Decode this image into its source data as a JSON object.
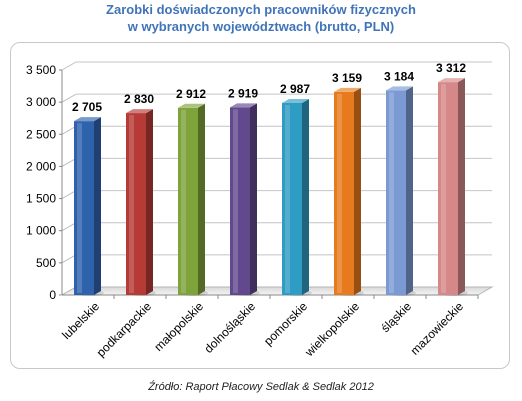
{
  "title_line1": "Zarobki doświadczonych pracowników fizycznych",
  "title_line2": "w wybranych województwach (brutto, PLN)",
  "source": "Źródło: Raport Płacowy Sedlak & Sedlak 2012",
  "chart_data": {
    "type": "bar",
    "title": "Zarobki doświadczonych pracowników fizycznych w wybranych województwach (brutto, PLN)",
    "xlabel": "",
    "ylabel": "",
    "ylim": [
      0,
      3500
    ],
    "yticks": [
      0,
      500,
      1000,
      1500,
      2000,
      2500,
      3000,
      3500
    ],
    "ytick_labels": [
      "0",
      "500",
      "1 000",
      "1 500",
      "2 000",
      "2 500",
      "3 000",
      "3 500"
    ],
    "grid": true,
    "categories": [
      "lubelskie",
      "podkarpackie",
      "małopolskie",
      "dolnośląskie",
      "pomorskie",
      "wielkopolskie",
      "śląskie",
      "mazowieckie"
    ],
    "values": [
      2705,
      2830,
      2912,
      2919,
      2987,
      3159,
      3184,
      3312
    ],
    "value_labels": [
      "2 705",
      "2 830",
      "2 912",
      "2 919",
      "2 987",
      "3 159",
      "3 184",
      "3 312"
    ],
    "colors": [
      "#2f62ad",
      "#b63a36",
      "#7ea33a",
      "#62488d",
      "#2f9cc4",
      "#e87a1e",
      "#7b9ad3",
      "#d58887"
    ]
  }
}
